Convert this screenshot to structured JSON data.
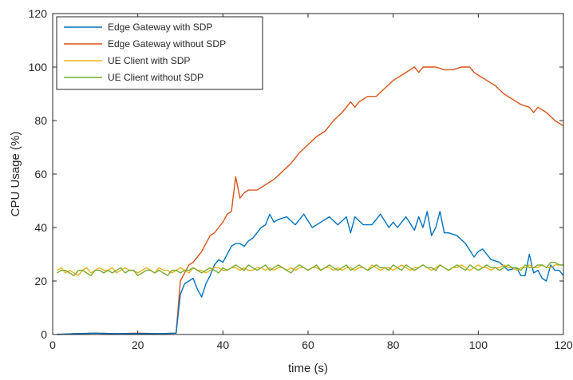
{
  "chart_data": {
    "type": "line",
    "xlabel": "time (s)",
    "ylabel": "CPU Usage (%)",
    "xlim": [
      0,
      120
    ],
    "ylim": [
      0,
      120
    ],
    "xticks": [
      0,
      20,
      40,
      60,
      80,
      100,
      120
    ],
    "yticks": [
      0,
      20,
      40,
      60,
      80,
      100,
      120
    ],
    "grid": false,
    "legend_position": "top-left",
    "series": [
      {
        "name": "Edge Gateway with SDP",
        "color": "#0072BD",
        "x": [
          1,
          5,
          10,
          15,
          20,
          25,
          29,
          30,
          31,
          32,
          33,
          34,
          35,
          36,
          37,
          38,
          39,
          40,
          41,
          42,
          43,
          44,
          45,
          46,
          47,
          48,
          49,
          50,
          51,
          52,
          53,
          55,
          57,
          59,
          61,
          63,
          65,
          67,
          69,
          70,
          71,
          73,
          75,
          77,
          79,
          80,
          81,
          83,
          85,
          86,
          87,
          88,
          89,
          90,
          91,
          92,
          93,
          95,
          97,
          99,
          100,
          101,
          102,
          103,
          105,
          107,
          109,
          110,
          111,
          112,
          113,
          114,
          115,
          116,
          117,
          118,
          119,
          120
        ],
        "y": [
          0,
          0.3,
          0.5,
          0.3,
          0.4,
          0.3,
          0.5,
          15,
          19,
          20,
          21,
          17,
          14,
          19,
          22,
          26,
          28,
          27,
          30,
          33,
          34,
          34,
          33,
          35,
          36,
          38,
          40,
          41,
          45,
          42,
          43,
          44,
          41,
          45,
          40,
          42,
          44,
          41,
          44,
          38,
          44,
          41,
          41,
          45,
          40,
          42,
          40,
          44,
          39,
          44,
          40,
          46,
          37,
          40,
          46,
          38,
          38,
          37,
          34,
          29,
          31,
          32,
          30,
          28,
          27,
          24,
          25,
          22,
          22,
          30,
          23,
          24,
          21,
          20,
          26,
          24,
          24,
          22
        ]
      },
      {
        "name": "Edge Gateway without SDP",
        "color": "#D95319",
        "x": [
          1,
          5,
          10,
          15,
          20,
          25,
          29,
          30,
          31,
          32,
          33,
          34,
          35,
          36,
          37,
          38,
          39,
          40,
          41,
          42,
          43,
          44,
          45,
          46,
          47,
          48,
          49,
          50,
          52,
          54,
          56,
          58,
          60,
          62,
          64,
          66,
          68,
          70,
          71,
          72,
          74,
          76,
          78,
          80,
          82,
          84,
          85,
          86,
          87,
          88,
          90,
          92,
          93,
          94,
          96,
          97,
          98,
          99,
          100,
          102,
          104,
          106,
          108,
          110,
          112,
          113,
          114,
          116,
          118,
          120
        ],
        "y": [
          0,
          0.3,
          0.5,
          0.3,
          0.5,
          0.3,
          0.5,
          20,
          23,
          26,
          27,
          29,
          31,
          34,
          37,
          38,
          40,
          42,
          45,
          46,
          59,
          51,
          53,
          54,
          54,
          54,
          55,
          56,
          58,
          61,
          64,
          68,
          71,
          74,
          76,
          80,
          83,
          87,
          85,
          87,
          89,
          89,
          92,
          95,
          97,
          99,
          100,
          98,
          100,
          100,
          100,
          99,
          99,
          99,
          100,
          100,
          100,
          98,
          97,
          95,
          93,
          90,
          88,
          86,
          85,
          83,
          85,
          83,
          80,
          78
        ]
      },
      {
        "name": "UE Client with SDP",
        "color": "#EDB120",
        "x": [
          1,
          2,
          3,
          4,
          5,
          6,
          7,
          8,
          9,
          10,
          11,
          12,
          13,
          14,
          15,
          16,
          17,
          18,
          19,
          20,
          21,
          22,
          23,
          24,
          25,
          26,
          27,
          28,
          29,
          30,
          31,
          32,
          33,
          34,
          35,
          36,
          37,
          38,
          39,
          40,
          41,
          42,
          43,
          44,
          45,
          46,
          47,
          48,
          49,
          50,
          51,
          52,
          53,
          54,
          55,
          56,
          57,
          58,
          59,
          60,
          61,
          62,
          63,
          64,
          65,
          66,
          67,
          68,
          69,
          70,
          71,
          72,
          73,
          74,
          75,
          76,
          77,
          78,
          79,
          80,
          81,
          82,
          83,
          84,
          85,
          86,
          87,
          88,
          89,
          90,
          91,
          92,
          93,
          94,
          95,
          96,
          97,
          98,
          99,
          100,
          101,
          102,
          103,
          104,
          105,
          106,
          107,
          108,
          109,
          110,
          111,
          112,
          113,
          114,
          115,
          116,
          117,
          118,
          119,
          120
        ],
        "y": [
          24,
          25,
          23,
          24,
          23,
          22,
          24,
          25,
          23,
          24,
          25,
          24,
          24,
          25,
          23,
          24,
          25,
          24,
          24,
          23,
          24,
          25,
          24,
          23,
          25,
          24,
          24,
          23,
          24,
          25,
          24,
          23,
          25,
          24,
          24,
          23,
          24,
          25,
          25,
          24,
          24,
          25,
          25,
          24,
          25,
          24,
          24,
          25,
          25,
          24,
          25,
          24,
          25,
          25,
          24,
          25,
          24,
          25,
          25,
          24,
          25,
          25,
          24,
          25,
          25,
          24,
          25,
          24,
          25,
          25,
          24,
          25,
          25,
          24,
          26,
          25,
          24,
          25,
          25,
          24,
          25,
          26,
          25,
          24,
          25,
          25,
          26,
          25,
          24,
          25,
          26,
          25,
          24,
          25,
          25,
          26,
          25,
          24,
          25,
          26,
          25,
          25,
          24,
          25,
          25,
          26,
          25,
          25,
          24,
          25,
          25,
          26,
          25,
          25,
          26,
          25,
          25,
          26,
          26,
          26
        ]
      },
      {
        "name": "UE Client without SDP",
        "color": "#77AC30",
        "x": [
          1,
          2,
          3,
          4,
          5,
          6,
          7,
          8,
          9,
          10,
          11,
          12,
          13,
          14,
          15,
          16,
          17,
          18,
          19,
          20,
          21,
          22,
          23,
          24,
          25,
          26,
          27,
          28,
          29,
          30,
          31,
          32,
          33,
          34,
          35,
          36,
          37,
          38,
          39,
          40,
          41,
          42,
          43,
          44,
          45,
          46,
          47,
          48,
          49,
          50,
          51,
          52,
          53,
          54,
          55,
          56,
          57,
          58,
          59,
          60,
          61,
          62,
          63,
          64,
          65,
          66,
          67,
          68,
          69,
          70,
          71,
          72,
          73,
          74,
          75,
          76,
          77,
          78,
          79,
          80,
          81,
          82,
          83,
          84,
          85,
          86,
          87,
          88,
          89,
          90,
          91,
          92,
          93,
          94,
          95,
          96,
          97,
          98,
          99,
          100,
          101,
          102,
          103,
          104,
          105,
          106,
          107,
          108,
          109,
          110,
          111,
          112,
          113,
          114,
          115,
          116,
          117,
          118,
          119,
          120
        ],
        "y": [
          23,
          24,
          24,
          23,
          22,
          24,
          24,
          23,
          22,
          24,
          24,
          23,
          24,
          23,
          24,
          25,
          23,
          24,
          24,
          22,
          23,
          24,
          24,
          23,
          24,
          23,
          22,
          24,
          24,
          23,
          24,
          24,
          25,
          24,
          23,
          24,
          25,
          24,
          23,
          25,
          24,
          25,
          26,
          25,
          24,
          26,
          25,
          24,
          25,
          26,
          24,
          25,
          26,
          25,
          24,
          23,
          25,
          26,
          25,
          24,
          25,
          26,
          24,
          25,
          26,
          25,
          24,
          25,
          26,
          24,
          25,
          26,
          25,
          24,
          25,
          26,
          25,
          25,
          24,
          26,
          25,
          24,
          26,
          25,
          24,
          25,
          26,
          25,
          25,
          24,
          26,
          25,
          24,
          25,
          26,
          25,
          24,
          26,
          25,
          24,
          25,
          26,
          25,
          25,
          24,
          25,
          26,
          25,
          25,
          24,
          26,
          25,
          25,
          26,
          26,
          25,
          27,
          27,
          26,
          26
        ]
      }
    ]
  }
}
